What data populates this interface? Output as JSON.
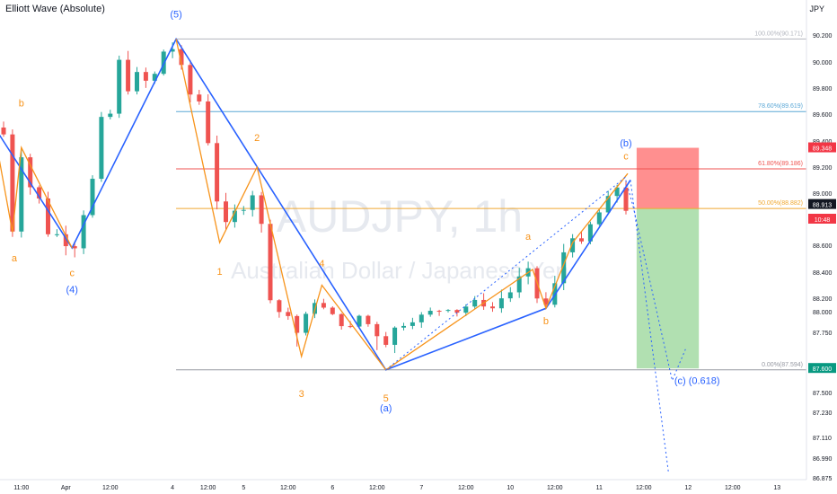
{
  "header": {
    "indicator_label": "Elliott Wave (Absolute)",
    "currency_unit": "JPY"
  },
  "watermark": {
    "symbol": "AUDJPY, 1h",
    "description": "Australian Dollar / Japanese Yen"
  },
  "colors": {
    "up_candle": "#26a69a",
    "down_candle": "#ef5350",
    "impulse_wave": "#2962ff",
    "sub_wave": "#f7931a",
    "fib_100": "#b2b5be",
    "fib_786": "#5aa7d6",
    "fib_618": "#ef5350",
    "fib_50": "#f0a830",
    "fib_0": "#9598a1",
    "stop_zone": "#ff7b7b",
    "target_zone": "#a3dba3",
    "price_tag_stop": "#f23645",
    "price_tag_current": "#131722",
    "price_tag_timer": "#f23645",
    "price_tag_target": "#089981"
  },
  "chart_data": {
    "type": "candlestick",
    "symbol": "AUDJPY",
    "timeframe": "1h",
    "ylim": [
      86.875,
      90.45
    ],
    "grid": false,
    "y_ticks": [
      "90.200",
      "90.000",
      "89.800",
      "89.600",
      "89.400",
      "89.200",
      "89.000",
      "88.800",
      "88.600",
      "88.400",
      "88.200",
      "88.000",
      "87.750",
      "87.500",
      "87.230",
      "87.110",
      "86.990",
      "86.875"
    ],
    "x_ticks": [
      {
        "label": "11:00",
        "x": 2
      },
      {
        "label": "Apr",
        "x": 7
      },
      {
        "label": "12:00",
        "x": 12
      },
      {
        "label": "4",
        "x": 19
      },
      {
        "label": "12:00",
        "x": 23
      },
      {
        "label": "5",
        "x": 27
      },
      {
        "label": "12:00",
        "x": 32
      },
      {
        "label": "6",
        "x": 37
      },
      {
        "label": "12:00",
        "x": 42
      },
      {
        "label": "7",
        "x": 47
      },
      {
        "label": "12:00",
        "x": 52
      },
      {
        "label": "10",
        "x": 57
      },
      {
        "label": "12:00",
        "x": 62
      },
      {
        "label": "11",
        "x": 67
      },
      {
        "label": "12:00",
        "x": 72
      },
      {
        "label": "12",
        "x": 77
      },
      {
        "label": "12:00",
        "x": 82
      },
      {
        "label": "13",
        "x": 87
      }
    ],
    "candles": [],
    "fib_levels": [
      {
        "ratio_label": "100.00%(90.171)",
        "price": 90.171,
        "color_key": "fib_100"
      },
      {
        "ratio_label": "78.60%(89.619)",
        "price": 89.619,
        "color_key": "fib_786"
      },
      {
        "ratio_label": "61.80%(89.186)",
        "price": 89.186,
        "color_key": "fib_618"
      },
      {
        "ratio_label": "50.00%(88.882)",
        "price": 88.882,
        "color_key": "fib_50"
      },
      {
        "ratio_label": "0.00%(87.594)",
        "price": 87.594,
        "color_key": "fib_0"
      }
    ],
    "impulse_waves": [
      {
        "points": [
          [
            -1,
            89.5
          ],
          [
            7.7,
            88.58
          ],
          [
            19.4,
            90.17
          ],
          [
            43,
            87.594
          ],
          [
            61,
            88.05
          ],
          [
            70.5,
            89.1
          ]
        ]
      }
    ],
    "sub_waves": [
      {
        "points": [
          [
            -1,
            89.45
          ],
          [
            1,
            88.7
          ],
          [
            2,
            89.35
          ],
          [
            7.7,
            88.58
          ]
        ]
      },
      {
        "points": [
          [
            19.4,
            90.17
          ],
          [
            24.3,
            88.62
          ],
          [
            28.5,
            89.2
          ],
          [
            33.5,
            87.65
          ],
          [
            35.8,
            88.3
          ],
          [
            43,
            87.594
          ]
        ]
      },
      {
        "points": [
          [
            43,
            87.594
          ],
          [
            59.5,
            88.42
          ],
          [
            61,
            88.05
          ],
          [
            64,
            88.62
          ],
          [
            70.2,
            89.15
          ]
        ]
      }
    ],
    "wave_labels": [
      {
        "text": "b",
        "x": 2,
        "price": 89.66,
        "color_key": "sub_wave"
      },
      {
        "text": "a",
        "x": 1.2,
        "price": 88.48,
        "color_key": "sub_wave"
      },
      {
        "text": "c",
        "x": 7.7,
        "price": 88.37,
        "color_key": "sub_wave"
      },
      {
        "text": "(4)",
        "x": 7.7,
        "price": 88.24,
        "color_key": "impulse_wave"
      },
      {
        "text": "(5)",
        "x": 19.4,
        "price": 90.37,
        "color_key": "impulse_wave"
      },
      {
        "text": "2",
        "x": 28.5,
        "price": 89.4,
        "color_key": "sub_wave"
      },
      {
        "text": "1",
        "x": 24.3,
        "price": 88.38,
        "color_key": "sub_wave"
      },
      {
        "text": "4",
        "x": 35.8,
        "price": 88.44,
        "color_key": "sub_wave"
      },
      {
        "text": "3",
        "x": 33.5,
        "price": 87.44,
        "color_key": "sub_wave"
      },
      {
        "text": "5",
        "x": 43,
        "price": 87.38,
        "color_key": "sub_wave"
      },
      {
        "text": "(a)",
        "x": 43,
        "price": 87.24,
        "color_key": "impulse_wave"
      },
      {
        "text": "a",
        "x": 59,
        "price": 88.64,
        "color_key": "sub_wave"
      },
      {
        "text": "b",
        "x": 61,
        "price": 87.85,
        "color_key": "sub_wave"
      },
      {
        "text": "(b)",
        "x": 70,
        "price": 89.36,
        "color_key": "impulse_wave"
      },
      {
        "text": "c",
        "x": 70,
        "price": 89.26,
        "color_key": "sub_wave"
      },
      {
        "text": "(c) (0.618)",
        "x": 78,
        "price": 87.535,
        "color_key": "impulse_wave"
      }
    ],
    "position_tool": {
      "entry": 88.882,
      "stop": 89.348,
      "target": 87.6,
      "x_start": 71.2,
      "x_end": 78.2
    },
    "price_tags": [
      {
        "label": "89.348",
        "price": 89.348,
        "color_key": "price_tag_stop"
      },
      {
        "label": "88.913",
        "price": 88.913,
        "color_key": "price_tag_current"
      },
      {
        "label": "10:48",
        "price": 88.8,
        "color_key": "price_tag_timer"
      },
      {
        "label": "87.600",
        "price": 87.6,
        "color_key": "price_tag_target"
      }
    ]
  }
}
